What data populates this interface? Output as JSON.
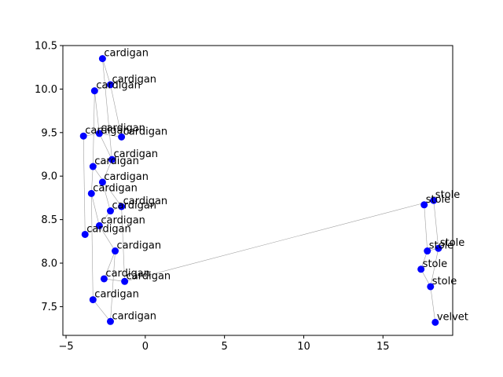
{
  "chart_data": {
    "type": "scatter",
    "title": "",
    "xlabel": "",
    "ylabel": "",
    "xlim": [
      -5.2,
      19.4
    ],
    "ylim": [
      7.17,
      10.5
    ],
    "xticks": [
      -5,
      0,
      5,
      10,
      15
    ],
    "yticks": [
      7.5,
      8.0,
      8.5,
      9.0,
      9.5,
      10.0,
      10.5
    ],
    "xtick_labels": [
      "−5",
      "0",
      "5",
      "10",
      "15"
    ],
    "ytick_labels": [
      "7.5",
      "8.0",
      "8.5",
      "9.0",
      "9.5",
      "10.0",
      "10.5"
    ],
    "grid": false,
    "legend": "none",
    "marker_color": "#0000ff",
    "edge_color": "#a0a0a0",
    "points": [
      {
        "x": -2.7,
        "y": 10.35,
        "label": "cardigan"
      },
      {
        "x": -2.2,
        "y": 10.05,
        "label": "cardigan"
      },
      {
        "x": -3.2,
        "y": 9.98,
        "label": "cardigan"
      },
      {
        "x": -3.9,
        "y": 9.46,
        "label": "cardigan"
      },
      {
        "x": -2.9,
        "y": 9.49,
        "label": "cardigan"
      },
      {
        "x": -1.5,
        "y": 9.45,
        "label": "cardigan"
      },
      {
        "x": -2.1,
        "y": 9.19,
        "label": "cardigan"
      },
      {
        "x": -3.3,
        "y": 9.11,
        "label": "cardigan"
      },
      {
        "x": -2.7,
        "y": 8.93,
        "label": "cardigan"
      },
      {
        "x": -3.4,
        "y": 8.8,
        "label": "cardigan"
      },
      {
        "x": -1.5,
        "y": 8.65,
        "label": "cardigan"
      },
      {
        "x": -2.2,
        "y": 8.6,
        "label": "cardigan"
      },
      {
        "x": -2.9,
        "y": 8.43,
        "label": "cardigan"
      },
      {
        "x": -3.8,
        "y": 8.33,
        "label": "cardigan"
      },
      {
        "x": -1.9,
        "y": 8.14,
        "label": "cardigan"
      },
      {
        "x": -2.6,
        "y": 7.82,
        "label": "cardigan"
      },
      {
        "x": -1.3,
        "y": 7.79,
        "label": "cardigan"
      },
      {
        "x": -3.3,
        "y": 7.58,
        "label": "cardigan"
      },
      {
        "x": -2.2,
        "y": 7.33,
        "label": "cardigan"
      },
      {
        "x": 18.2,
        "y": 8.72,
        "label": "stole"
      },
      {
        "x": 17.6,
        "y": 8.67,
        "label": "stole"
      },
      {
        "x": 18.5,
        "y": 8.17,
        "label": "stole"
      },
      {
        "x": 17.8,
        "y": 8.14,
        "label": "stole"
      },
      {
        "x": 17.4,
        "y": 7.93,
        "label": "stole"
      },
      {
        "x": 18.0,
        "y": 7.73,
        "label": "stole"
      },
      {
        "x": 18.3,
        "y": 7.32,
        "label": "velvet"
      }
    ],
    "edges": [
      [
        0,
        1
      ],
      [
        0,
        6
      ],
      [
        1,
        5
      ],
      [
        1,
        2
      ],
      [
        2,
        7
      ],
      [
        2,
        4
      ],
      [
        3,
        4
      ],
      [
        3,
        13
      ],
      [
        4,
        5
      ],
      [
        4,
        6
      ],
      [
        6,
        7
      ],
      [
        6,
        8
      ],
      [
        7,
        9
      ],
      [
        7,
        10
      ],
      [
        8,
        11
      ],
      [
        9,
        12
      ],
      [
        10,
        11
      ],
      [
        10,
        16
      ],
      [
        11,
        12
      ],
      [
        12,
        13
      ],
      [
        12,
        14
      ],
      [
        9,
        17
      ],
      [
        14,
        15
      ],
      [
        15,
        16
      ],
      [
        16,
        19
      ],
      [
        17,
        18
      ],
      [
        14,
        18
      ],
      [
        19,
        20
      ],
      [
        20,
        22
      ],
      [
        19,
        21
      ],
      [
        21,
        22
      ],
      [
        22,
        23
      ],
      [
        21,
        24
      ],
      [
        23,
        24
      ],
      [
        24,
        25
      ]
    ]
  }
}
